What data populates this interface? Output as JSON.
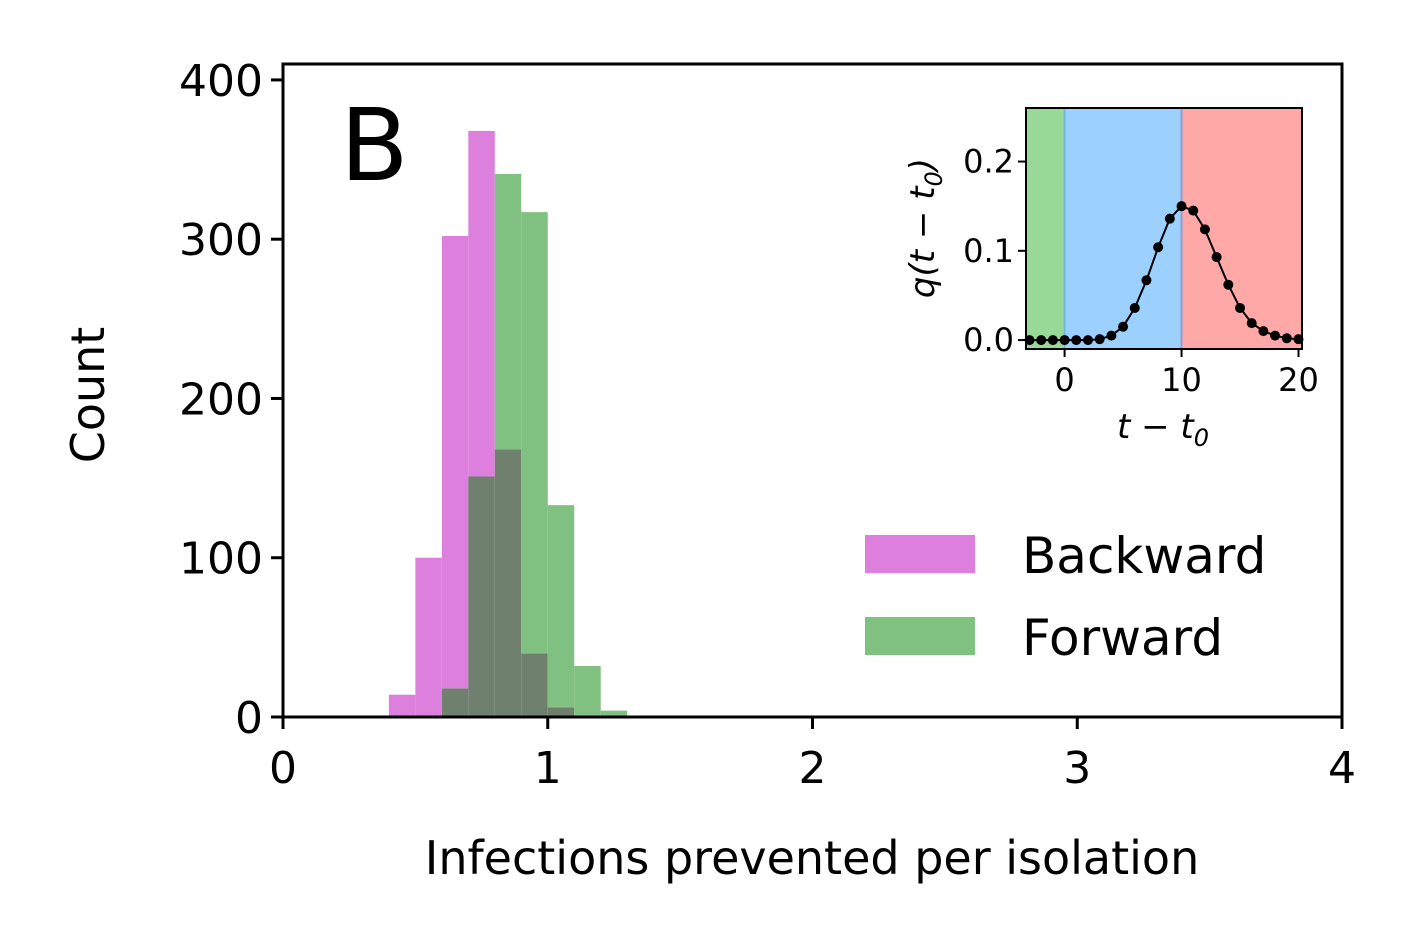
{
  "panel_label": "B",
  "chart_data": {
    "type": "bar",
    "subtype": "overlapping-histogram",
    "xlabel": "Infections prevented per isolation",
    "ylabel": "Count",
    "xlim": [
      0,
      4
    ],
    "ylim": [
      0,
      410
    ],
    "x_ticks": [
      0,
      1,
      2,
      3,
      4
    ],
    "x_tick_labels": [
      "0",
      "1",
      "2",
      "3",
      "4"
    ],
    "y_ticks": [
      0,
      100,
      200,
      300,
      400
    ],
    "y_tick_labels": [
      "0",
      "100",
      "200",
      "300",
      "400"
    ],
    "grid": false,
    "legend_position": "lower-right",
    "bin_edges": [
      0.4,
      0.5,
      0.6,
      0.7,
      0.8,
      0.9,
      1.0,
      1.1,
      1.2,
      1.3
    ],
    "series": [
      {
        "name": "Backward",
        "color": "#dd80dd",
        "values": [
          14,
          100,
          302,
          368,
          168,
          40,
          6,
          1,
          0
        ]
      },
      {
        "name": "Forward",
        "color": "#80c080",
        "values": [
          0,
          0,
          18,
          151,
          341,
          317,
          133,
          32,
          4
        ]
      }
    ],
    "overlap_color": "#6f806f",
    "inset": {
      "type": "line",
      "xlabel": "t − t",
      "xlabel_sub": "0",
      "ylabel": "q(t − t",
      "ylabel_sub": "0",
      "ylabel_close": ")",
      "xlim": [
        -3.3,
        20.3
      ],
      "ylim": [
        -0.01,
        0.26
      ],
      "x_ticks": [
        0,
        10,
        20
      ],
      "x_tick_labels": [
        "0",
        "10",
        "20"
      ],
      "y_ticks": [
        0.0,
        0.1,
        0.2
      ],
      "y_tick_labels": [
        "0.0",
        "0.1",
        "0.2"
      ],
      "regions": [
        {
          "from": -3.3,
          "to": 0,
          "color": "#98d998"
        },
        {
          "from": 0,
          "to": 10,
          "color": "#9cd0ff"
        },
        {
          "from": 10,
          "to": 20.3,
          "color": "#ffa8a8"
        }
      ],
      "x": [
        -3,
        -2,
        -1,
        0,
        1,
        2,
        3,
        4,
        5,
        6,
        7,
        8,
        9,
        10,
        11,
        12,
        13,
        14,
        15,
        16,
        17,
        18,
        19,
        20
      ],
      "y": [
        0.0,
        0.0,
        0.0,
        0.0,
        0.0,
        0.0,
        0.001,
        0.005,
        0.015,
        0.036,
        0.067,
        0.104,
        0.136,
        0.15,
        0.145,
        0.124,
        0.093,
        0.062,
        0.036,
        0.019,
        0.01,
        0.005,
        0.002,
        0.001
      ]
    }
  }
}
